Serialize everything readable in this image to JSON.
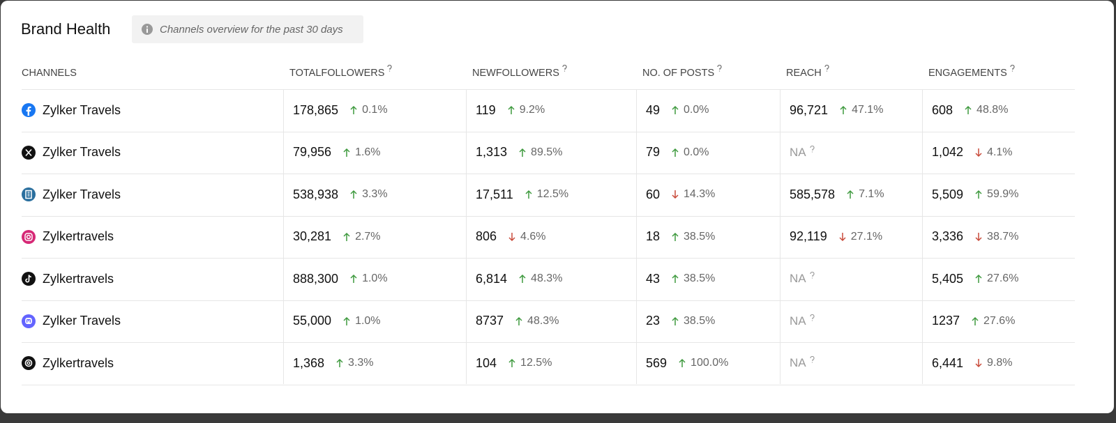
{
  "header": {
    "title": "Brand Health",
    "subtitle": "Channels overview for the past 30 days"
  },
  "table": {
    "columns": [
      "CHANNELS",
      "TOTALFOLLOWERS",
      "NEWFOLLOWERS",
      "NO. OF POSTS",
      "REACH",
      "ENGAGEMENTS"
    ],
    "rows": [
      {
        "channel": "Zylker Travels",
        "network": "facebook",
        "cells": [
          {
            "value": "178,865",
            "change": "0.1%",
            "trend": "up"
          },
          {
            "value": "119",
            "change": "9.2%",
            "trend": "up"
          },
          {
            "value": "49",
            "change": "0.0%",
            "trend": "up"
          },
          {
            "value": "96,721",
            "change": "47.1%",
            "trend": "up"
          },
          {
            "value": "608",
            "change": "48.8%",
            "trend": "up"
          }
        ]
      },
      {
        "channel": "Zylker Travels",
        "network": "x",
        "cells": [
          {
            "value": "79,956",
            "change": "1.6%",
            "trend": "up"
          },
          {
            "value": "1,313",
            "change": "89.5%",
            "trend": "up"
          },
          {
            "value": "79",
            "change": "0.0%",
            "trend": "up"
          },
          {
            "value": "NA"
          },
          {
            "value": "1,042",
            "change": "4.1%",
            "trend": "down"
          }
        ]
      },
      {
        "channel": "Zylker Travels",
        "network": "gmb",
        "cells": [
          {
            "value": "538,938",
            "change": "3.3%",
            "trend": "up"
          },
          {
            "value": "17,511",
            "change": "12.5%",
            "trend": "up"
          },
          {
            "value": "60",
            "change": "14.3%",
            "trend": "down"
          },
          {
            "value": "585,578",
            "change": "7.1%",
            "trend": "up"
          },
          {
            "value": "5,509",
            "change": "59.9%",
            "trend": "up"
          }
        ]
      },
      {
        "channel": "Zylkertravels",
        "network": "instagram",
        "cells": [
          {
            "value": "30,281",
            "change": "2.7%",
            "trend": "up"
          },
          {
            "value": "806",
            "change": "4.6%",
            "trend": "down"
          },
          {
            "value": "18",
            "change": "38.5%",
            "trend": "up"
          },
          {
            "value": "92,119",
            "change": "27.1%",
            "trend": "down"
          },
          {
            "value": "3,336",
            "change": "38.7%",
            "trend": "down"
          }
        ]
      },
      {
        "channel": "Zylkertravels",
        "network": "tiktok",
        "cells": [
          {
            "value": "888,300",
            "change": "1.0%",
            "trend": "up"
          },
          {
            "value": "6,814",
            "change": "48.3%",
            "trend": "up"
          },
          {
            "value": "43",
            "change": "38.5%",
            "trend": "up"
          },
          {
            "value": "NA"
          },
          {
            "value": "5,405",
            "change": "27.6%",
            "trend": "up"
          }
        ]
      },
      {
        "channel": "Zylker Travels",
        "network": "mastodon",
        "cells": [
          {
            "value": "55,000",
            "change": "1.0%",
            "trend": "up"
          },
          {
            "value": "8737",
            "change": "48.3%",
            "trend": "up"
          },
          {
            "value": "23",
            "change": "38.5%",
            "trend": "up"
          },
          {
            "value": "NA"
          },
          {
            "value": "1237",
            "change": "27.6%",
            "trend": "up"
          }
        ]
      },
      {
        "channel": "Zylkertravels",
        "network": "threads",
        "cells": [
          {
            "value": "1,368",
            "change": "3.3%",
            "trend": "up"
          },
          {
            "value": "104",
            "change": "12.5%",
            "trend": "up"
          },
          {
            "value": "569",
            "change": "100.0%",
            "trend": "up"
          },
          {
            "value": "NA"
          },
          {
            "value": "6,441",
            "change": "9.8%",
            "trend": "down"
          }
        ]
      }
    ]
  }
}
